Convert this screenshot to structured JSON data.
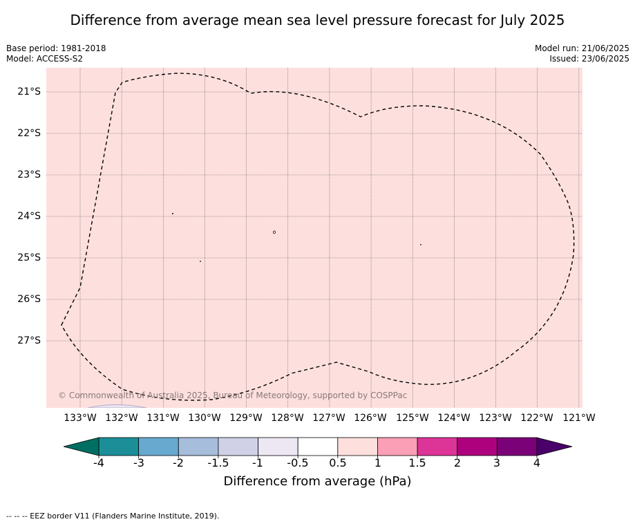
{
  "title": "Difference from average mean sea level pressure forecast for July 2025",
  "meta": {
    "base_period": "Base period: 1981-2018",
    "model": "Model: ACCESS-S2",
    "model_run": "Model run: 21/06/2025",
    "issued": "Issued: 23/06/2025"
  },
  "map": {
    "fill_color": "#fde0de",
    "latitudes": [
      "21°S",
      "22°S",
      "23°S",
      "24°S",
      "25°S",
      "26°S",
      "27°S"
    ],
    "longitudes": [
      "133°W",
      "132°W",
      "131°W",
      "130°W",
      "129°W",
      "128°W",
      "127°W",
      "126°W",
      "125°W",
      "124°W",
      "123°W",
      "122°W",
      "121°W"
    ],
    "copyright": "© Commonwealth of Australia 2025, Bureau of Meteorology, supported by COSPPac"
  },
  "colorbar": {
    "title": "Difference from average (hPa)",
    "tick_labels": [
      "-4",
      "-3",
      "-2",
      "-1.5",
      "-1",
      "-0.5",
      "0.5",
      "1",
      "1.5",
      "2",
      "3",
      "4"
    ],
    "colors": {
      "under": "#006f63",
      "bins": [
        "#1b8e98",
        "#67a9cf",
        "#a6bddb",
        "#d0d1e6",
        "#ece7f2",
        "#ffffff",
        "#fde0dd",
        "#fa9fb5",
        "#dd3497",
        "#ae017e",
        "#7a0177"
      ],
      "over": "#49006a"
    }
  },
  "footnote": "-- -- -- EEZ border V11 (Flanders Marine Institute, 2019)."
}
